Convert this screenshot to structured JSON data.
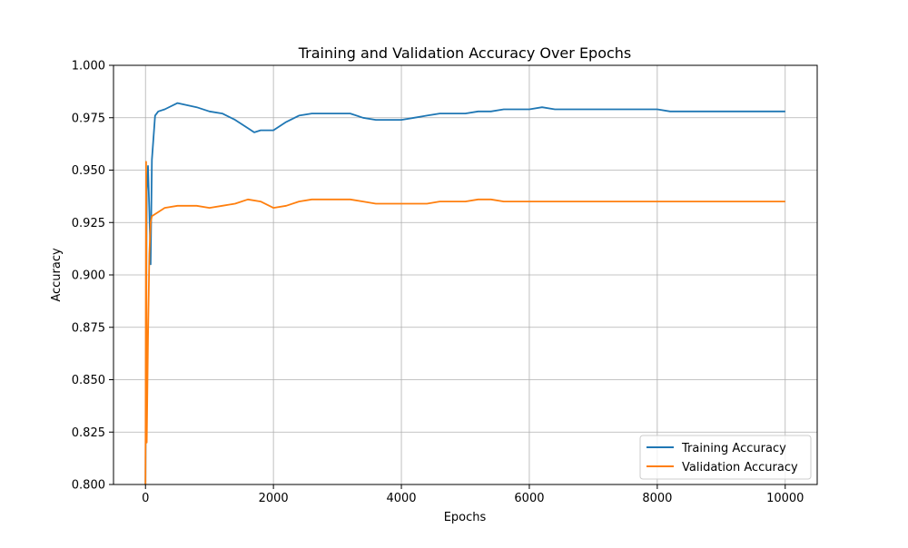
{
  "chart_data": {
    "type": "line",
    "title": "Training and Validation Accuracy Over Epochs",
    "xlabel": "Epochs",
    "ylabel": "Accuracy",
    "xlim": [
      -500,
      10500
    ],
    "ylim": [
      0.8,
      1.0
    ],
    "xticks": [
      0,
      2000,
      4000,
      6000,
      8000,
      10000
    ],
    "xtick_labels": [
      "0",
      "2000",
      "4000",
      "6000",
      "8000",
      "10000"
    ],
    "yticks": [
      0.8,
      0.825,
      0.85,
      0.875,
      0.9,
      0.925,
      0.95,
      0.975,
      1.0
    ],
    "ytick_labels": [
      "0.800",
      "0.825",
      "0.850",
      "0.875",
      "0.900",
      "0.925",
      "0.950",
      "0.975",
      "1.000"
    ],
    "grid": true,
    "legend_position": "bottom-right",
    "series": [
      {
        "name": "Training Accuracy",
        "color": "#1f77b4",
        "x": [
          0,
          20,
          40,
          60,
          80,
          100,
          150,
          200,
          300,
          500,
          800,
          1000,
          1200,
          1400,
          1600,
          1700,
          1800,
          2000,
          2200,
          2400,
          2600,
          2800,
          3000,
          3200,
          3400,
          3600,
          3800,
          4000,
          4200,
          4400,
          4600,
          4800,
          5000,
          5200,
          5400,
          5600,
          5800,
          6000,
          6200,
          6400,
          6600,
          6800,
          7000,
          7200,
          7400,
          7600,
          7800,
          8000,
          8200,
          8400,
          8600,
          8800,
          9000,
          9200,
          9400,
          9600,
          9800,
          10000
        ],
        "y": [
          0.8,
          0.94,
          0.952,
          0.93,
          0.905,
          0.955,
          0.976,
          0.978,
          0.979,
          0.982,
          0.98,
          0.978,
          0.977,
          0.974,
          0.97,
          0.968,
          0.969,
          0.969,
          0.973,
          0.976,
          0.977,
          0.977,
          0.977,
          0.977,
          0.975,
          0.974,
          0.974,
          0.974,
          0.975,
          0.976,
          0.977,
          0.977,
          0.977,
          0.978,
          0.978,
          0.979,
          0.979,
          0.979,
          0.98,
          0.979,
          0.979,
          0.979,
          0.979,
          0.979,
          0.979,
          0.979,
          0.979,
          0.979,
          0.978,
          0.978,
          0.978,
          0.978,
          0.978,
          0.978,
          0.978,
          0.978,
          0.978,
          0.978
        ]
      },
      {
        "name": "Validation Accuracy",
        "color": "#ff7f0e",
        "x": [
          0,
          10,
          20,
          40,
          60,
          80,
          100,
          150,
          200,
          300,
          500,
          800,
          1000,
          1200,
          1400,
          1600,
          1800,
          2000,
          2200,
          2400,
          2600,
          2800,
          3000,
          3200,
          3400,
          3600,
          3800,
          4000,
          4200,
          4400,
          4600,
          4800,
          5000,
          5200,
          5400,
          5600,
          5800,
          6000,
          6200,
          6400,
          6600,
          6800,
          7000,
          7200,
          7400,
          7600,
          7800,
          8000,
          8200,
          8400,
          8600,
          8800,
          9000,
          9200,
          9400,
          9600,
          9800,
          10000
        ],
        "y": [
          0.8,
          0.954,
          0.82,
          0.87,
          0.91,
          0.925,
          0.928,
          0.929,
          0.93,
          0.932,
          0.933,
          0.933,
          0.932,
          0.933,
          0.934,
          0.936,
          0.935,
          0.932,
          0.933,
          0.935,
          0.936,
          0.936,
          0.936,
          0.936,
          0.935,
          0.934,
          0.934,
          0.934,
          0.934,
          0.934,
          0.935,
          0.935,
          0.935,
          0.936,
          0.936,
          0.935,
          0.935,
          0.935,
          0.935,
          0.935,
          0.935,
          0.935,
          0.935,
          0.935,
          0.935,
          0.935,
          0.935,
          0.935,
          0.935,
          0.935,
          0.935,
          0.935,
          0.935,
          0.935,
          0.935,
          0.935,
          0.935,
          0.935
        ]
      }
    ]
  }
}
